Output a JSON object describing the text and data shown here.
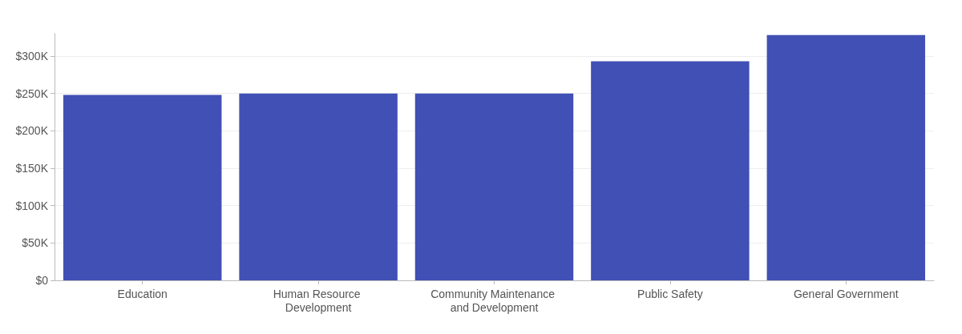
{
  "chart_data": {
    "type": "bar",
    "categories": [
      "Education",
      "Human Resource Development",
      "Community Maintenance and Development",
      "Public Safety",
      "General Government"
    ],
    "values": [
      248000,
      250000,
      250000,
      293000,
      328000
    ],
    "color": "#4050b5",
    "ylim": [
      0,
      330000
    ],
    "yticks": [
      {
        "value": 0,
        "label": "$0"
      },
      {
        "value": 50000,
        "label": "$50K"
      },
      {
        "value": 100000,
        "label": "$100K"
      },
      {
        "value": 150000,
        "label": "$150K"
      },
      {
        "value": 200000,
        "label": "$200K"
      },
      {
        "value": 250000,
        "label": "$250K"
      },
      {
        "value": 300000,
        "label": "$300K"
      }
    ],
    "grid": "y"
  }
}
